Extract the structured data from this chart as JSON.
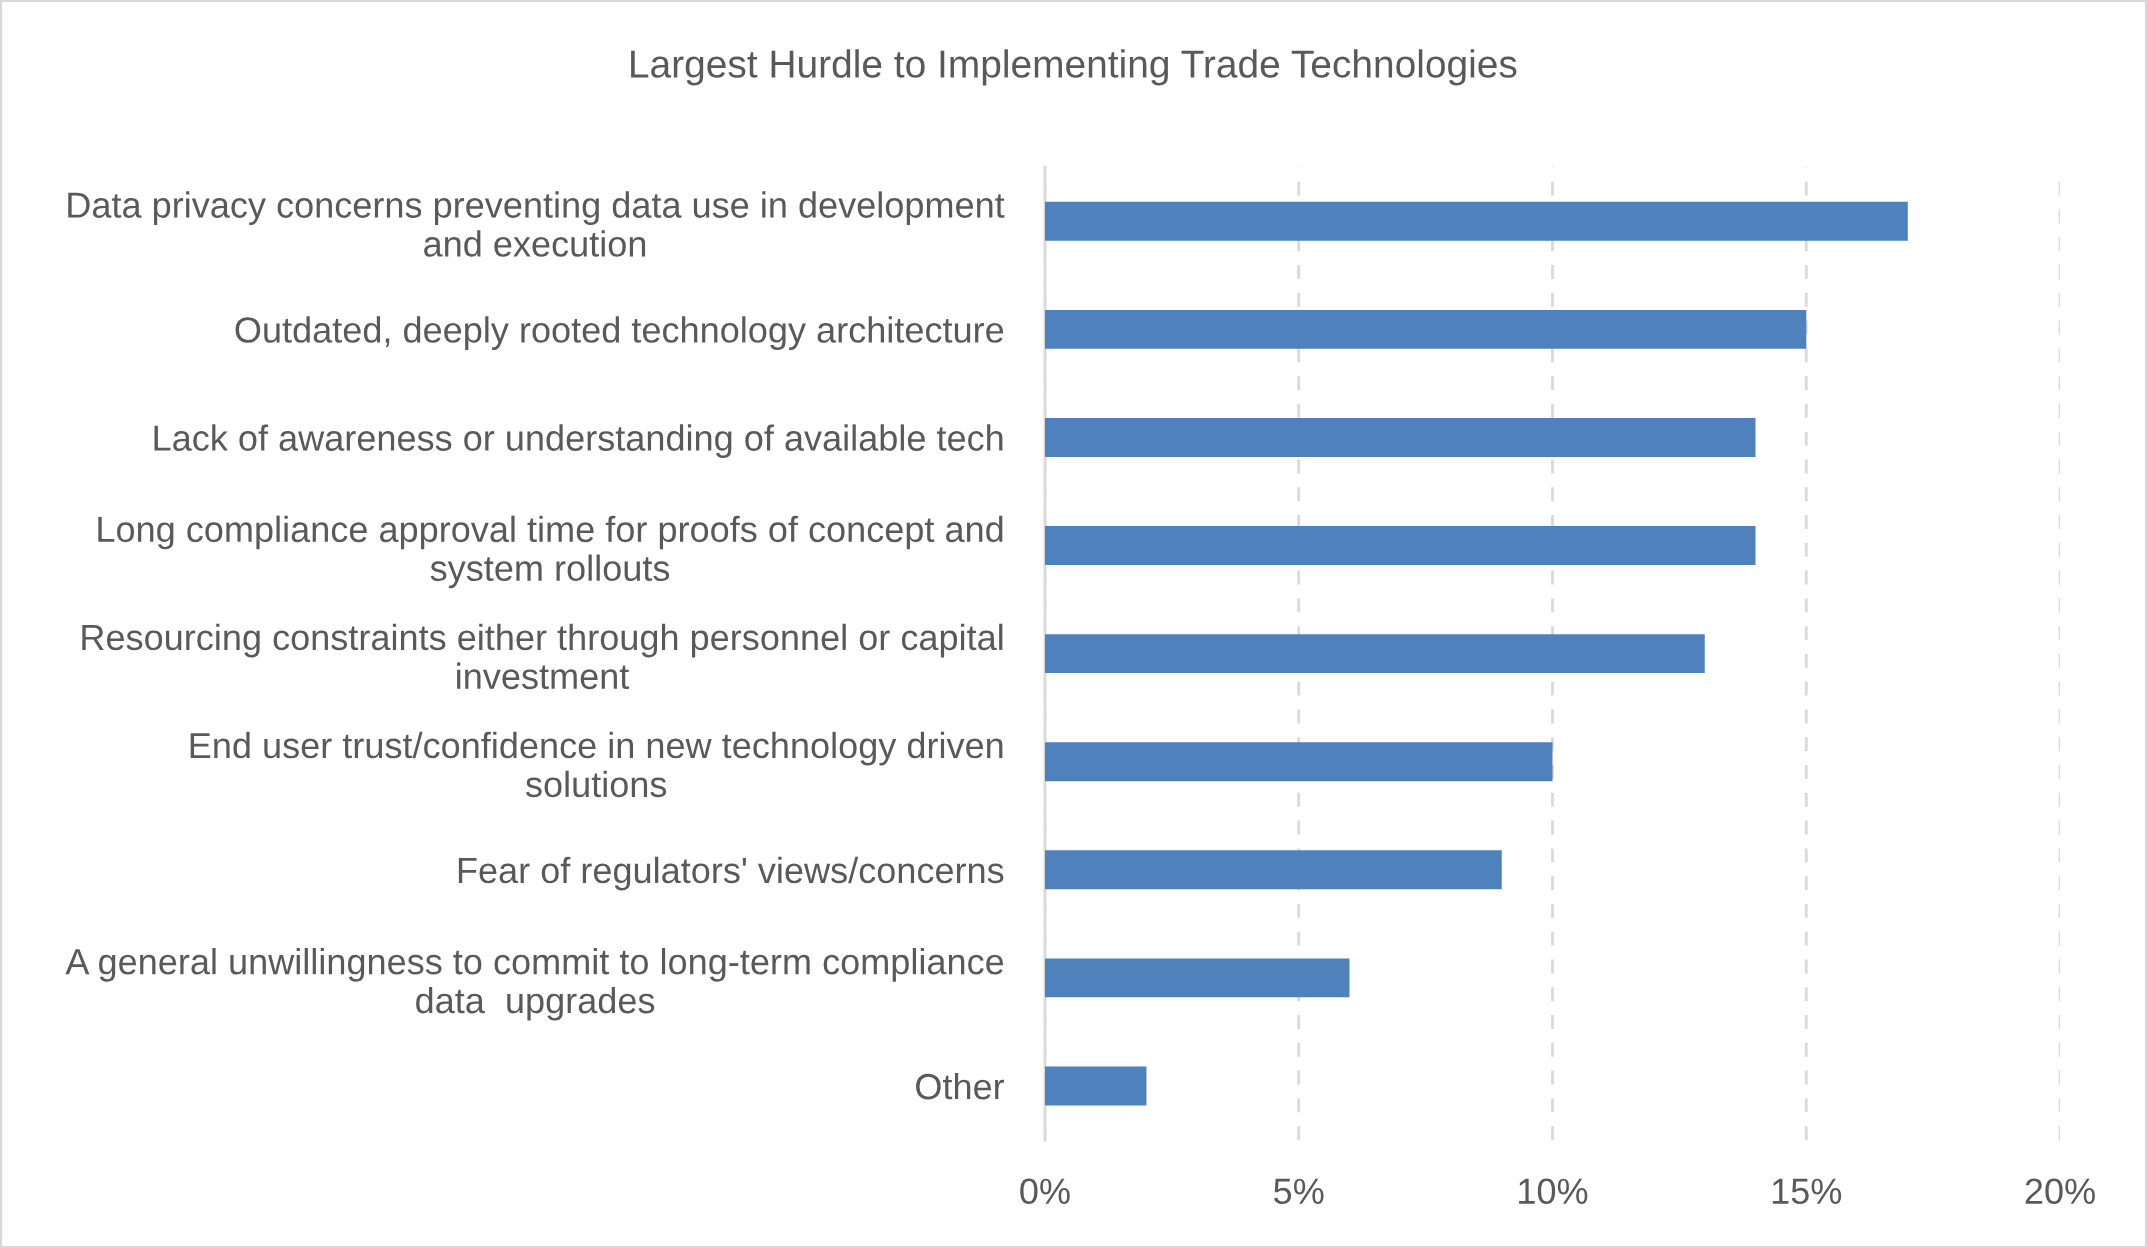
{
  "chart_data": {
    "type": "bar",
    "orientation": "horizontal",
    "title": "Largest Hurdle to Implementing Trade Technologies",
    "categories": [
      "Data privacy concerns preventing data use in development\nand execution",
      "Outdated, deeply rooted technology architecture",
      "Lack of awareness or understanding of available tech",
      "Long compliance approval time for proofs of concept and\nsystem rollouts",
      "Resourcing constraints either through personnel or capital\ninvestment",
      "End user trust/confidence in new technology driven\nsolutions",
      "Fear of regulators' views/concerns",
      "A general unwillingness to commit to long-term compliance\ndata  upgrades",
      "Other"
    ],
    "values": [
      17,
      15,
      14,
      14,
      13,
      10,
      9,
      6,
      2
    ],
    "color": "#4f81bd",
    "xlim": [
      0,
      20
    ],
    "xticks": [
      {
        "value": 0,
        "label": "0%"
      },
      {
        "value": 5,
        "label": "5%"
      },
      {
        "value": 10,
        "label": "10%"
      },
      {
        "value": 15,
        "label": "15%"
      },
      {
        "value": 20,
        "label": "20%"
      }
    ],
    "grid": "x",
    "legend": false
  }
}
